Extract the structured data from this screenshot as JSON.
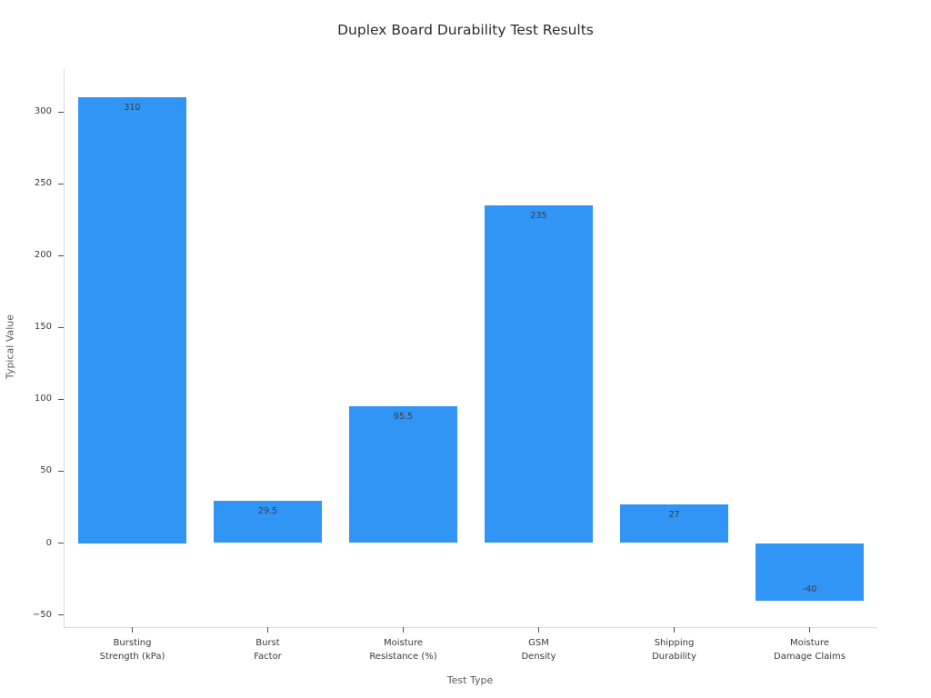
{
  "title": "Duplex Board Durability Test Results",
  "chart_data": {
    "type": "bar",
    "title": "Duplex Board Durability Test Results",
    "xlabel": "Test Type",
    "ylabel": "Typical Value",
    "categories": [
      "Bursting\nStrength (kPa)",
      "Burst\nFactor",
      "Moisture\nResistance (%)",
      "GSM\nDensity",
      "Shipping\nDurability",
      "Moisture\nDamage Claims"
    ],
    "values": [
      310,
      29.5,
      95.5,
      235,
      27,
      -40
    ],
    "value_labels": [
      "310",
      "29.5",
      "95.5",
      "235",
      "27",
      "-40"
    ],
    "yticks": [
      -50,
      0,
      50,
      100,
      150,
      200,
      250,
      300
    ],
    "ylim": [
      -58.5,
      330.5
    ],
    "bar_width_fraction": 0.8,
    "grid": false,
    "legend_position": "none",
    "bar_color": "#3095f5",
    "background_color": "#ffffff",
    "spine_color": "#d9d9d9",
    "tick_color": "#4d4d4d",
    "label_color": "#3a3a3a"
  }
}
